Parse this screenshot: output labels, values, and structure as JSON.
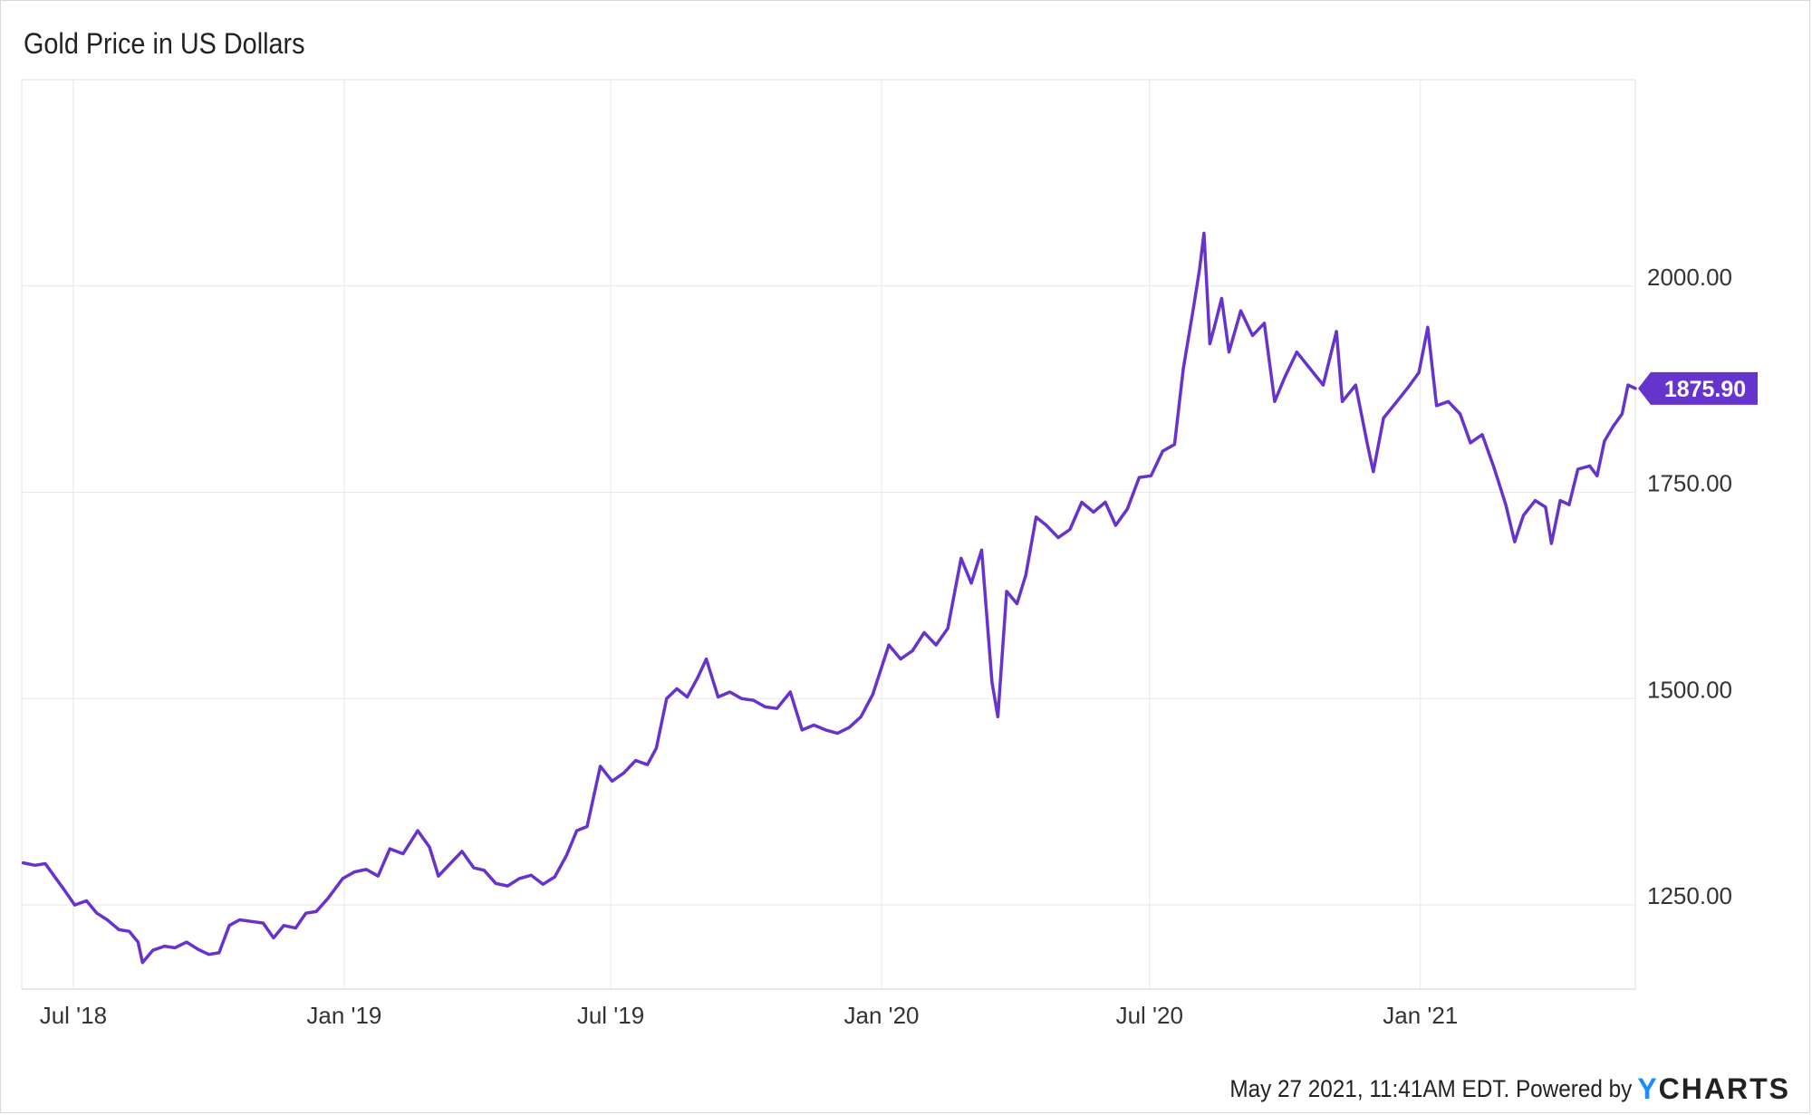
{
  "chart_data": {
    "type": "line",
    "title": "Gold Price in US Dollars",
    "x_ticks": [
      "Jul '18",
      "Jan '19",
      "Jul '19",
      "Jan '20",
      "Jul '20",
      "Jan '21"
    ],
    "y_ticks": [
      "1250.00",
      "1500.00",
      "1750.00",
      "2000.00"
    ],
    "ylim": [
      1148,
      2250
    ],
    "xlim": [
      "2018-05-27",
      "2021-05-27"
    ],
    "grid": true,
    "line_color": "#6633cc",
    "last_value_label": "1875.90",
    "series": [
      {
        "points": [
          [
            "2018-05-28",
            1301
          ],
          [
            "2018-06-05",
            1298
          ],
          [
            "2018-06-12",
            1300
          ],
          [
            "2018-06-18",
            1285
          ],
          [
            "2018-06-25",
            1268
          ],
          [
            "2018-07-02",
            1250
          ],
          [
            "2018-07-10",
            1255
          ],
          [
            "2018-07-17",
            1240
          ],
          [
            "2018-07-24",
            1232
          ],
          [
            "2018-08-01",
            1220
          ],
          [
            "2018-08-08",
            1218
          ],
          [
            "2018-08-14",
            1205
          ],
          [
            "2018-08-17",
            1180
          ],
          [
            "2018-08-24",
            1195
          ],
          [
            "2018-09-01",
            1200
          ],
          [
            "2018-09-08",
            1198
          ],
          [
            "2018-09-16",
            1205
          ],
          [
            "2018-09-24",
            1196
          ],
          [
            "2018-10-01",
            1190
          ],
          [
            "2018-10-08",
            1192
          ],
          [
            "2018-10-15",
            1225
          ],
          [
            "2018-10-22",
            1232
          ],
          [
            "2018-10-30",
            1230
          ],
          [
            "2018-11-07",
            1228
          ],
          [
            "2018-11-14",
            1210
          ],
          [
            "2018-11-21",
            1225
          ],
          [
            "2018-11-29",
            1222
          ],
          [
            "2018-12-06",
            1240
          ],
          [
            "2018-12-13",
            1242
          ],
          [
            "2018-12-21",
            1258
          ],
          [
            "2018-12-31",
            1282
          ],
          [
            "2019-01-08",
            1290
          ],
          [
            "2019-01-16",
            1293
          ],
          [
            "2019-01-24",
            1285
          ],
          [
            "2019-02-01",
            1318
          ],
          [
            "2019-02-10",
            1312
          ],
          [
            "2019-02-20",
            1340
          ],
          [
            "2019-02-28",
            1320
          ],
          [
            "2019-03-06",
            1285
          ],
          [
            "2019-03-14",
            1300
          ],
          [
            "2019-03-22",
            1315
          ],
          [
            "2019-03-30",
            1295
          ],
          [
            "2019-04-06",
            1292
          ],
          [
            "2019-04-14",
            1276
          ],
          [
            "2019-04-22",
            1273
          ],
          [
            "2019-04-30",
            1282
          ],
          [
            "2019-05-08",
            1286
          ],
          [
            "2019-05-16",
            1275
          ],
          [
            "2019-05-24",
            1284
          ],
          [
            "2019-06-01",
            1310
          ],
          [
            "2019-06-08",
            1340
          ],
          [
            "2019-06-15",
            1345
          ],
          [
            "2019-06-24",
            1418
          ],
          [
            "2019-07-02",
            1400
          ],
          [
            "2019-07-10",
            1410
          ],
          [
            "2019-07-18",
            1425
          ],
          [
            "2019-07-26",
            1420
          ],
          [
            "2019-08-01",
            1440
          ],
          [
            "2019-08-08",
            1500
          ],
          [
            "2019-08-15",
            1512
          ],
          [
            "2019-08-22",
            1502
          ],
          [
            "2019-08-29",
            1525
          ],
          [
            "2019-09-04",
            1548
          ],
          [
            "2019-09-12",
            1502
          ],
          [
            "2019-09-20",
            1508
          ],
          [
            "2019-09-28",
            1500
          ],
          [
            "2019-10-06",
            1498
          ],
          [
            "2019-10-14",
            1490
          ],
          [
            "2019-10-22",
            1488
          ],
          [
            "2019-10-31",
            1508
          ],
          [
            "2019-11-08",
            1462
          ],
          [
            "2019-11-16",
            1468
          ],
          [
            "2019-11-24",
            1462
          ],
          [
            "2019-12-02",
            1458
          ],
          [
            "2019-12-10",
            1465
          ],
          [
            "2019-12-18",
            1478
          ],
          [
            "2019-12-26",
            1505
          ],
          [
            "2020-01-06",
            1565
          ],
          [
            "2020-01-14",
            1548
          ],
          [
            "2020-01-22",
            1558
          ],
          [
            "2020-01-30",
            1580
          ],
          [
            "2020-02-07",
            1565
          ],
          [
            "2020-02-15",
            1585
          ],
          [
            "2020-02-24",
            1670
          ],
          [
            "2020-03-02",
            1640
          ],
          [
            "2020-03-09",
            1680
          ],
          [
            "2020-03-16",
            1520
          ],
          [
            "2020-03-20",
            1478
          ],
          [
            "2020-03-26",
            1630
          ],
          [
            "2020-04-02",
            1615
          ],
          [
            "2020-04-08",
            1650
          ],
          [
            "2020-04-15",
            1720
          ],
          [
            "2020-04-22",
            1710
          ],
          [
            "2020-04-30",
            1695
          ],
          [
            "2020-05-08",
            1705
          ],
          [
            "2020-05-16",
            1738
          ],
          [
            "2020-05-24",
            1726
          ],
          [
            "2020-06-01",
            1738
          ],
          [
            "2020-06-08",
            1710
          ],
          [
            "2020-06-16",
            1730
          ],
          [
            "2020-06-24",
            1768
          ],
          [
            "2020-07-02",
            1770
          ],
          [
            "2020-07-10",
            1800
          ],
          [
            "2020-07-18",
            1808
          ],
          [
            "2020-07-24",
            1900
          ],
          [
            "2020-07-31",
            1975
          ],
          [
            "2020-08-04",
            2020
          ],
          [
            "2020-08-07",
            2064
          ],
          [
            "2020-08-11",
            1930
          ],
          [
            "2020-08-14",
            1950
          ],
          [
            "2020-08-19",
            1985
          ],
          [
            "2020-08-24",
            1920
          ],
          [
            "2020-09-01",
            1970
          ],
          [
            "2020-09-09",
            1940
          ],
          [
            "2020-09-17",
            1955
          ],
          [
            "2020-09-24",
            1860
          ],
          [
            "2020-10-01",
            1890
          ],
          [
            "2020-10-09",
            1920
          ],
          [
            "2020-10-18",
            1900
          ],
          [
            "2020-10-27",
            1880
          ],
          [
            "2020-11-05",
            1945
          ],
          [
            "2020-11-09",
            1860
          ],
          [
            "2020-11-18",
            1880
          ],
          [
            "2020-11-26",
            1808
          ],
          [
            "2020-11-30",
            1775
          ],
          [
            "2020-12-07",
            1840
          ],
          [
            "2020-12-16",
            1860
          ],
          [
            "2020-12-24",
            1878
          ],
          [
            "2020-12-31",
            1895
          ],
          [
            "2021-01-06",
            1950
          ],
          [
            "2021-01-12",
            1855
          ],
          [
            "2021-01-20",
            1860
          ],
          [
            "2021-01-28",
            1845
          ],
          [
            "2021-02-04",
            1810
          ],
          [
            "2021-02-12",
            1820
          ],
          [
            "2021-02-20",
            1780
          ],
          [
            "2021-02-28",
            1735
          ],
          [
            "2021-03-06",
            1690
          ],
          [
            "2021-03-12",
            1722
          ],
          [
            "2021-03-20",
            1740
          ],
          [
            "2021-03-27",
            1732
          ],
          [
            "2021-03-31",
            1688
          ],
          [
            "2021-04-06",
            1740
          ],
          [
            "2021-04-12",
            1735
          ],
          [
            "2021-04-18",
            1778
          ],
          [
            "2021-04-26",
            1782
          ],
          [
            "2021-05-01",
            1770
          ],
          [
            "2021-05-06",
            1812
          ],
          [
            "2021-05-12",
            1830
          ],
          [
            "2021-05-18",
            1845
          ],
          [
            "2021-05-22",
            1880
          ],
          [
            "2021-05-27",
            1875.9
          ]
        ]
      }
    ]
  },
  "footer": {
    "timestamp": "May 27 2021, 11:41AM EDT.  Powered by",
    "brand_y": "Y",
    "brand_rest": "CHARTS"
  }
}
